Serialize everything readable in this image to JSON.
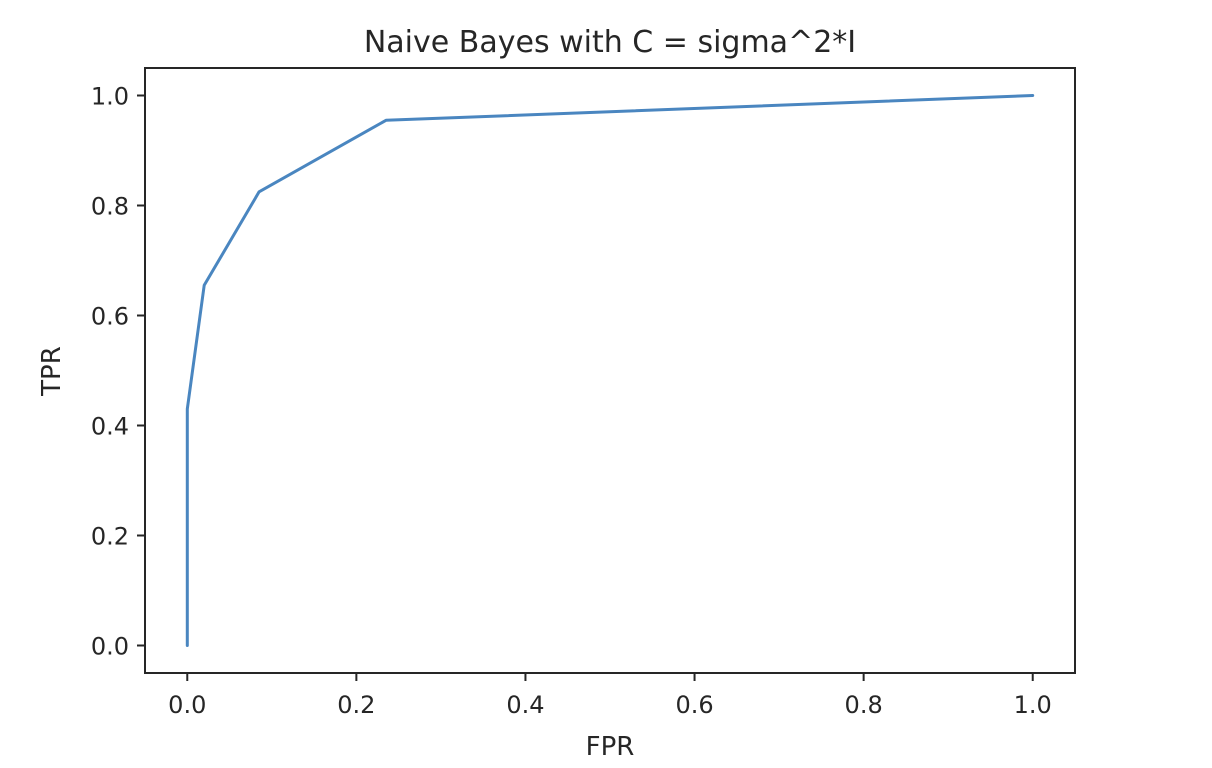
{
  "chart_data": {
    "type": "line",
    "title": "Naive Bayes with C = sigma^2*I",
    "xlabel": "FPR",
    "ylabel": "TPR",
    "xlim": [
      -0.05,
      1.05
    ],
    "ylim": [
      -0.05,
      1.05
    ],
    "grid": false,
    "xticks": [
      0.0,
      0.2,
      0.4,
      0.6,
      0.8,
      1.0
    ],
    "yticks": [
      0.0,
      0.2,
      0.4,
      0.6,
      0.8,
      1.0
    ],
    "xtick_labels": [
      "0.0",
      "0.2",
      "0.4",
      "0.6",
      "0.8",
      "1.0"
    ],
    "ytick_labels": [
      "0.0",
      "0.2",
      "0.4",
      "0.6",
      "0.8",
      "1.0"
    ],
    "series": [
      {
        "color": "#4a86c0",
        "x": [
          0.0,
          0.0,
          0.02,
          0.085,
          0.235,
          1.0
        ],
        "y": [
          0.0,
          0.43,
          0.655,
          0.825,
          0.955,
          1.0
        ]
      }
    ]
  }
}
